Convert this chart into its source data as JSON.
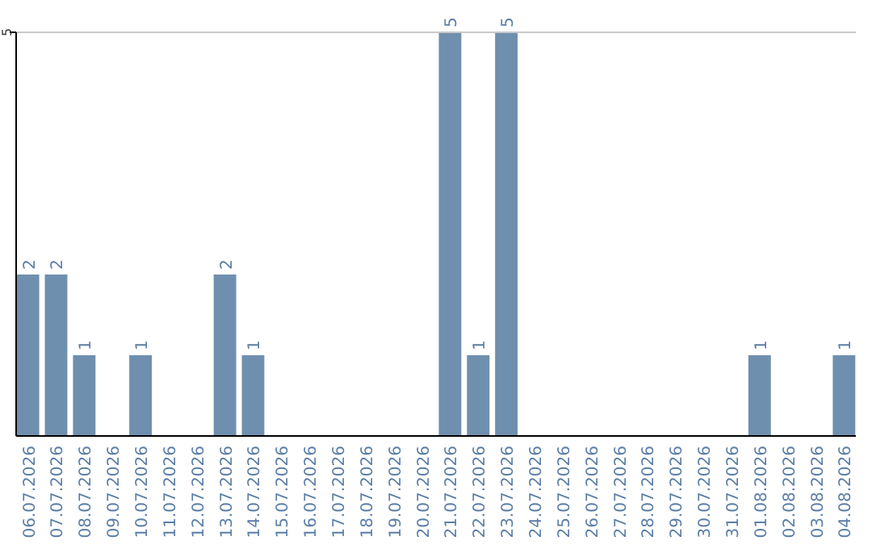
{
  "chart_data": {
    "type": "bar",
    "categories": [
      "06.07.2026",
      "07.07.2026",
      "08.07.2026",
      "09.07.2026",
      "10.07.2026",
      "11.07.2026",
      "12.07.2026",
      "13.07.2026",
      "14.07.2026",
      "15.07.2026",
      "16.07.2026",
      "17.07.2026",
      "18.07.2026",
      "19.07.2026",
      "20.07.2026",
      "21.07.2026",
      "22.07.2026",
      "23.07.2026",
      "24.07.2026",
      "25.07.2026",
      "26.07.2026",
      "27.07.2026",
      "28.07.2026",
      "29.07.2026",
      "30.07.2026",
      "31.07.2026",
      "01.08.2026",
      "02.08.2026",
      "03.08.2026",
      "04.08.2026"
    ],
    "values": [
      2,
      2,
      1,
      0,
      1,
      0,
      0,
      2,
      1,
      0,
      0,
      0,
      0,
      0,
      0,
      5,
      1,
      5,
      0,
      0,
      0,
      0,
      0,
      0,
      0,
      0,
      1,
      0,
      0,
      1
    ],
    "value_labels": [
      "2",
      "2",
      "1",
      null,
      "1",
      null,
      null,
      "2",
      "1",
      null,
      null,
      null,
      null,
      null,
      null,
      "5",
      "1",
      "5",
      null,
      null,
      null,
      null,
      null,
      null,
      null,
      null,
      "1",
      null,
      null,
      "1"
    ],
    "color": "#6f8fae",
    "ylim": [
      0,
      5
    ],
    "yticks": [
      5
    ],
    "ref_lines": [
      {
        "axis": "y",
        "value": 5,
        "color": "#c8c8c8"
      }
    ]
  }
}
